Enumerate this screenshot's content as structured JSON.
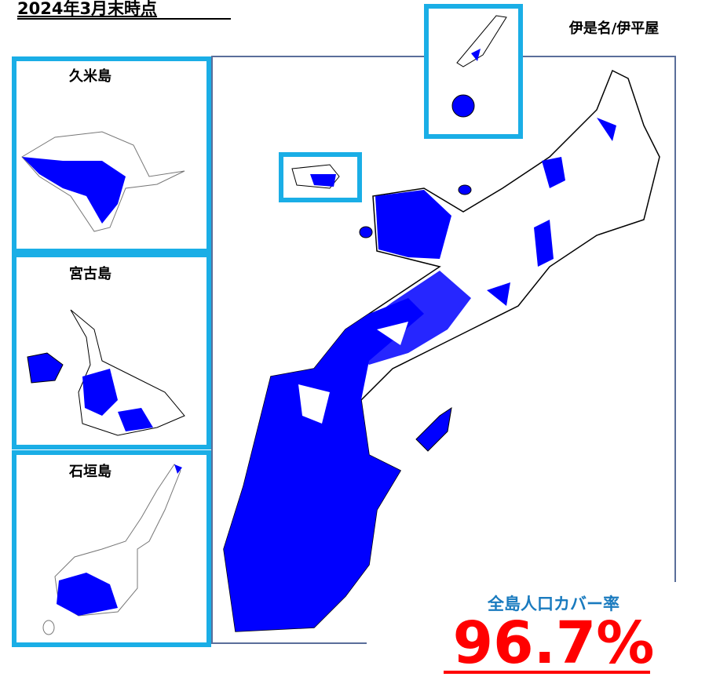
{
  "header": {
    "title": "2024年3月末時点"
  },
  "islands": {
    "izena_iheya": "伊是名/伊平屋",
    "kume": "久米島",
    "miyako": "宮古島",
    "ishigaki": "石垣島"
  },
  "coverage": {
    "label": "全島人口カバー率",
    "value": "96.7%"
  }
}
